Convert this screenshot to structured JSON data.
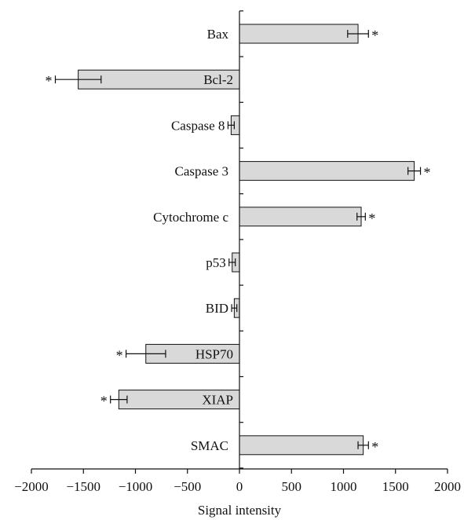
{
  "chart_data": {
    "type": "bar",
    "orientation": "horizontal",
    "title": "",
    "xlabel": "Signal intensity",
    "ylabel": "",
    "xlim": [
      -2000,
      2000
    ],
    "xticks": [
      -2000,
      -1500,
      -1000,
      -500,
      0,
      500,
      1000,
      1500,
      2000
    ],
    "xtick_labels": [
      "−2000",
      "−1500",
      "−1000",
      "−500",
      "0",
      "500",
      "1000",
      "1500",
      "2000"
    ],
    "grid": false,
    "categories": [
      "Bax",
      "Bcl-2",
      "Caspase 8",
      "Caspase 3",
      "Cytochrome c",
      "p53",
      "BID",
      "HSP70",
      "XIAP",
      "SMAC"
    ],
    "values": [
      1140,
      -1550,
      -80,
      1680,
      1170,
      -70,
      -50,
      -900,
      -1160,
      1190
    ],
    "errors": [
      100,
      220,
      30,
      60,
      40,
      30,
      25,
      190,
      80,
      50
    ],
    "significant": [
      true,
      true,
      false,
      true,
      true,
      false,
      false,
      true,
      true,
      true
    ],
    "significance_marker": "*",
    "bar_color": "#d9d9d9"
  }
}
